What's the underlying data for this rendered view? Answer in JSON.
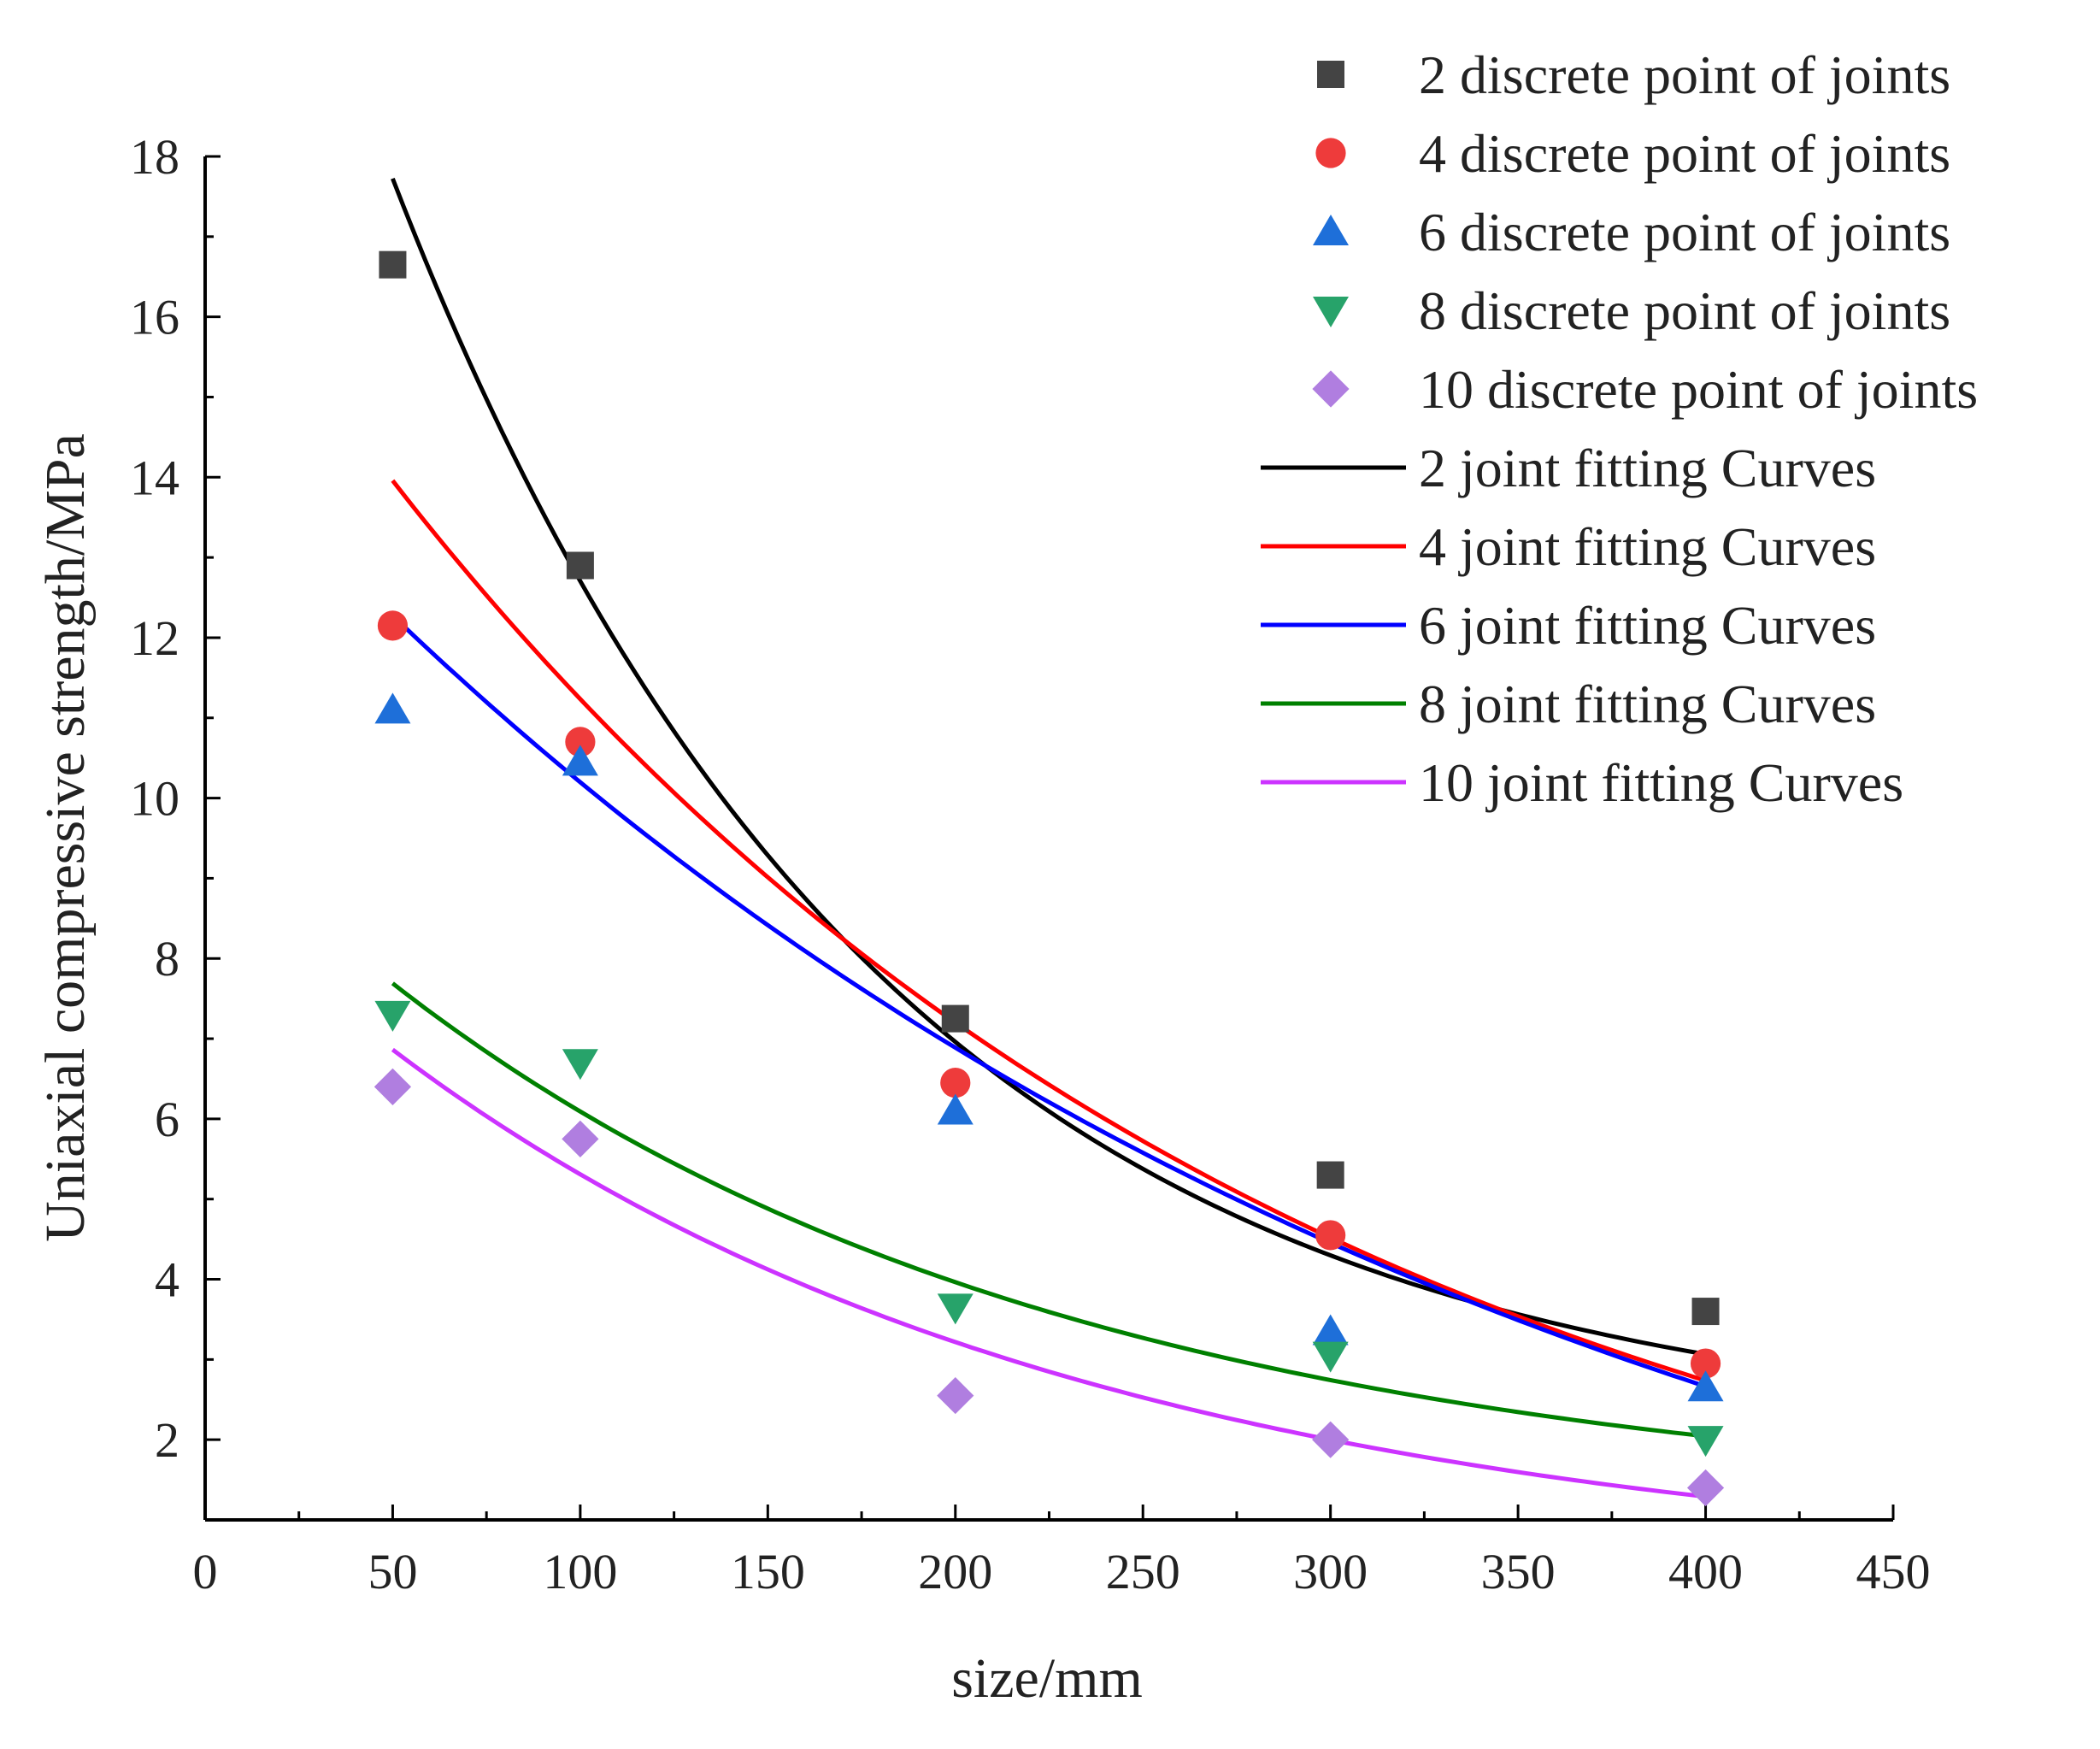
{
  "chart_data": {
    "type": "scatter",
    "title": "",
    "xlabel": "size/mm",
    "ylabel": "Uniaxial compressive strength/MPa",
    "xlim": [
      0,
      450
    ],
    "ylim": [
      1,
      18
    ],
    "x_ticks": [
      0,
      50,
      100,
      150,
      200,
      250,
      300,
      350,
      400,
      450
    ],
    "y_ticks": [
      2,
      4,
      6,
      8,
      10,
      12,
      14,
      16,
      18
    ],
    "legend_position": "top-right",
    "series": [
      {
        "name": "2 discrete point of joints",
        "marker": "square",
        "color": "#444444",
        "x": [
          50,
          100,
          200,
          300,
          400
        ],
        "y": [
          16.65,
          12.9,
          7.25,
          5.3,
          3.6
        ]
      },
      {
        "name": "4 discrete point of joints",
        "marker": "circle",
        "color": "#ee3b3b",
        "x": [
          50,
          100,
          200,
          300,
          400
        ],
        "y": [
          12.15,
          10.7,
          6.45,
          4.55,
          2.95
        ]
      },
      {
        "name": "6 discrete point of joints",
        "marker": "triangle-up",
        "color": "#1e6fd9",
        "x": [
          50,
          100,
          200,
          300,
          400
        ],
        "y": [
          11.1,
          10.45,
          6.1,
          3.35,
          2.65
        ]
      },
      {
        "name": "8 discrete point of joints",
        "marker": "triangle-down",
        "color": "#27a36a",
        "x": [
          50,
          100,
          200,
          300,
          400
        ],
        "y": [
          7.3,
          6.7,
          3.65,
          3.05,
          2.0
        ]
      },
      {
        "name": "10 discrete point of joints",
        "marker": "diamond",
        "color": "#b07ee0",
        "x": [
          50,
          100,
          200,
          300,
          400
        ],
        "y": [
          6.4,
          5.75,
          2.55,
          2.0,
          1.4
        ]
      }
    ],
    "fits": [
      {
        "name": "2 joint fitting Curves",
        "color": "#000000",
        "x_range": [
          50,
          400
        ],
        "model": "y = A*exp(-x/t) + y0",
        "A": 23.1,
        "t": 130,
        "y0": 2.0
      },
      {
        "name": "4 joint fitting Curves",
        "color": "#ff0000",
        "x_range": [
          50,
          400
        ],
        "model": "y = A*exp(-x/t) + y0",
        "A": 18.1,
        "t": 245,
        "y0": -0.8
      },
      {
        "name": "6 joint fitting Curves",
        "color": "#0000ff",
        "x_range": [
          50,
          400
        ],
        "model": "y = A*exp(-x/t) + y0",
        "A": 17.0,
        "t": 325,
        "y0": -2.3
      },
      {
        "name": "8 joint fitting Curves",
        "color": "#008000",
        "x_range": [
          50,
          400
        ],
        "model": "y = A*exp(-x/t) + y0",
        "A": 8.7,
        "t": 180,
        "y0": 1.1
      },
      {
        "name": "10 joint fitting Curves",
        "color": "#cc33ff",
        "x_range": [
          50,
          400
        ],
        "model": "y = A*exp(-x/t) + y0",
        "A": 8.6,
        "t": 185,
        "y0": 0.3
      }
    ]
  }
}
